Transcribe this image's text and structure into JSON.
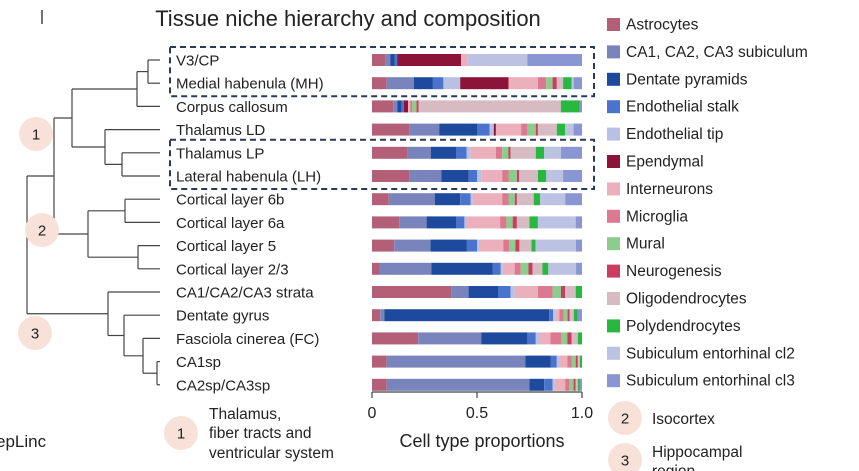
{
  "chart_data": {
    "type": "stacked-bar-horizontal",
    "title": "Tissue niche hierarchy and composition",
    "xlabel": "Cell type proportions",
    "xlim": [
      0,
      1.0
    ],
    "xticks": [
      {
        "value": 0,
        "label": "0"
      },
      {
        "value": 0.5,
        "label": "0.5"
      },
      {
        "value": 1.0,
        "label": "1.0"
      }
    ],
    "cut_text": "epLinc",
    "legend": [
      {
        "name": "Astrocytes",
        "color": "#b45f78"
      },
      {
        "name": "CA1, CA2, CA3 subiculum",
        "color": "#7a84bc"
      },
      {
        "name": "Dentate pyramids",
        "color": "#1d4a9c"
      },
      {
        "name": "Endothelial stalk",
        "color": "#4a74cc"
      },
      {
        "name": "Endothelial tip",
        "color": "#b8c0e4"
      },
      {
        "name": "Ependymal",
        "color": "#8c1438"
      },
      {
        "name": "Interneurons",
        "color": "#ecb0bc"
      },
      {
        "name": "Microglia",
        "color": "#dc7890"
      },
      {
        "name": "Mural",
        "color": "#8ccc8c"
      },
      {
        "name": "Neurogenesis",
        "color": "#cc3c60"
      },
      {
        "name": "Oligodendrocytes",
        "color": "#d6bcc2"
      },
      {
        "name": "Polydendrocytes",
        "color": "#28b840"
      },
      {
        "name": "Subiculum entorhinal cl2",
        "color": "#bcc2e2"
      },
      {
        "name": "Subiculum entorhinal cl3",
        "color": "#8a96d2"
      }
    ],
    "rows": [
      {
        "label": "V3/CP",
        "cluster": 1,
        "boxed_group": "a",
        "values": [
          0.06,
          0.02,
          0.02,
          0.01,
          0.0,
          0.28,
          0.03,
          0.0,
          0.0,
          0.0,
          0.0,
          0.0,
          0.26,
          0.24
        ]
      },
      {
        "label": "Medial habenula (MH)",
        "cluster": 1,
        "boxed_group": "a",
        "values": [
          0.07,
          0.13,
          0.09,
          0.05,
          0.08,
          0.23,
          0.14,
          0.04,
          0.03,
          0.02,
          0.03,
          0.04,
          0.01,
          0.04
        ]
      },
      {
        "label": "Corpus callosum",
        "cluster": 1,
        "values": [
          0.1,
          0.02,
          0.02,
          0.01,
          0.0,
          0.02,
          0.01,
          0.01,
          0.02,
          0.01,
          0.67,
          0.09,
          0.0,
          0.01
        ]
      },
      {
        "label": "Thalamus LD",
        "cluster": 1,
        "values": [
          0.18,
          0.14,
          0.18,
          0.06,
          0.02,
          0.01,
          0.12,
          0.03,
          0.04,
          0.01,
          0.09,
          0.04,
          0.04,
          0.04
        ]
      },
      {
        "label": "Thalamus LP",
        "cluster": 1,
        "boxed_group": "b",
        "values": [
          0.17,
          0.11,
          0.12,
          0.05,
          0.02,
          0.0,
          0.12,
          0.03,
          0.03,
          0.01,
          0.12,
          0.04,
          0.08,
          0.1
        ]
      },
      {
        "label": "Lateral habenula (LH)",
        "cluster": 1,
        "boxed_group": "b",
        "values": [
          0.18,
          0.15,
          0.13,
          0.04,
          0.02,
          0.0,
          0.1,
          0.03,
          0.04,
          0.01,
          0.09,
          0.04,
          0.08,
          0.09
        ]
      },
      {
        "label": "Cortical layer 6b",
        "cluster": 2,
        "values": [
          0.08,
          0.22,
          0.12,
          0.05,
          0.01,
          0.0,
          0.14,
          0.03,
          0.03,
          0.01,
          0.08,
          0.03,
          0.12,
          0.08
        ]
      },
      {
        "label": "Cortical layer 6a",
        "cluster": 2,
        "values": [
          0.13,
          0.13,
          0.14,
          0.04,
          0.01,
          0.0,
          0.16,
          0.03,
          0.03,
          0.02,
          0.06,
          0.04,
          0.18,
          0.03
        ]
      },
      {
        "label": "Cortical layer 5",
        "cluster": 2,
        "values": [
          0.11,
          0.18,
          0.18,
          0.05,
          0.01,
          0.0,
          0.12,
          0.03,
          0.03,
          0.02,
          0.06,
          0.02,
          0.2,
          0.03
        ]
      },
      {
        "label": "Cortical layer 2/3",
        "cluster": 2,
        "values": [
          0.04,
          0.26,
          0.31,
          0.04,
          0.01,
          0.0,
          0.06,
          0.03,
          0.04,
          0.02,
          0.05,
          0.03,
          0.14,
          0.03
        ]
      },
      {
        "label": "CA1/CA2/CA3 strata",
        "cluster": 3,
        "values": [
          0.38,
          0.08,
          0.14,
          0.06,
          0.02,
          0.0,
          0.11,
          0.07,
          0.04,
          0.02,
          0.05,
          0.03,
          0.0,
          0.0
        ]
      },
      {
        "label": "Dentate gyrus",
        "cluster": 3,
        "values": [
          0.04,
          0.02,
          0.8,
          0.02,
          0.01,
          0.0,
          0.02,
          0.02,
          0.02,
          0.01,
          0.02,
          0.02,
          0.0,
          0.02
        ]
      },
      {
        "label": "Fasciola cinerea (FC)",
        "cluster": 3,
        "values": [
          0.22,
          0.3,
          0.22,
          0.04,
          0.02,
          0.0,
          0.05,
          0.05,
          0.03,
          0.02,
          0.03,
          0.02,
          0.0,
          0.0
        ]
      },
      {
        "label": "CA1sp",
        "cluster": 3,
        "values": [
          0.07,
          0.66,
          0.12,
          0.03,
          0.01,
          0.0,
          0.04,
          0.02,
          0.02,
          0.01,
          0.01,
          0.01,
          0.0,
          0.0
        ]
      },
      {
        "label": "CA2sp/CA3sp",
        "cluster": 3,
        "values": [
          0.07,
          0.68,
          0.07,
          0.04,
          0.01,
          0.0,
          0.05,
          0.02,
          0.02,
          0.01,
          0.01,
          0.01,
          0.0,
          0.01
        ]
      }
    ],
    "clusters": [
      {
        "id": "1",
        "description": "Thalamus, fiber tracts and ventricular system"
      },
      {
        "id": "2",
        "description": "Isocortex"
      },
      {
        "id": "3",
        "description": "Hippocampal region"
      }
    ],
    "cluster_desc_lines": [
      [
        "Thalamus,",
        "fiber tracts and",
        "ventricular system"
      ],
      [
        "Isocortex"
      ],
      [
        "Hippocampal",
        "region"
      ]
    ],
    "colors": {
      "badge_fill": "#f8e1d8",
      "box_stroke": "#2a3a5a",
      "line": "#444444"
    }
  }
}
